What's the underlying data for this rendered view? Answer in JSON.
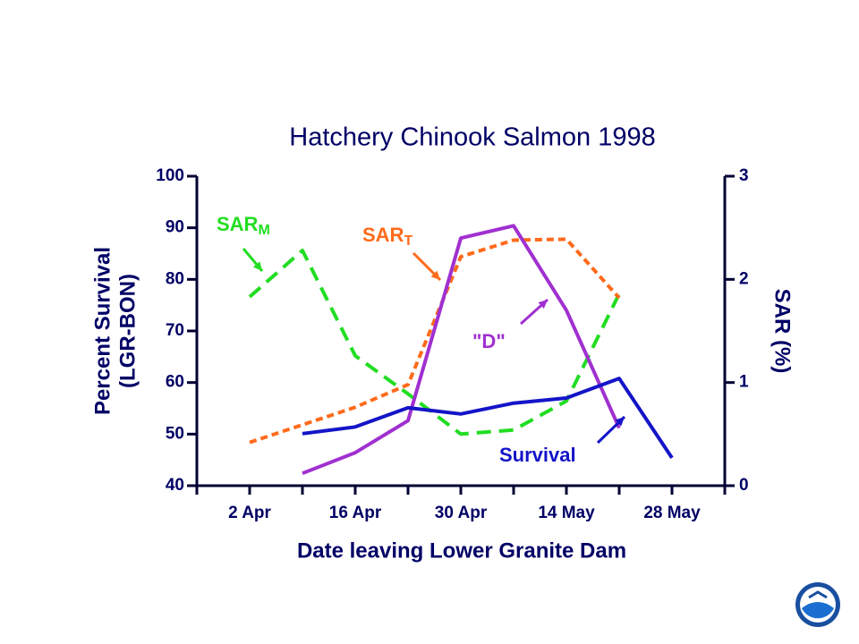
{
  "chart_data": {
    "type": "line",
    "title": "Hatchery Chinook Salmon 1998",
    "xlabel": "Date leaving Lower Granite  Dam",
    "ylabel": [
      "Percent Survival",
      "(LGR-BON)"
    ],
    "y2label": "SAR (%)",
    "xlim": [
      "26 Mar",
      "4 Jun"
    ],
    "xticks": [
      "2 Apr",
      "16 Apr",
      "30 Apr",
      "14 May",
      "28 May"
    ],
    "xminor_ticks": [
      "26 Mar",
      "9 Apr",
      "23 Apr",
      "7 May",
      "21 May",
      "4 Jun"
    ],
    "ylim": [
      40,
      100
    ],
    "yticks": [
      40,
      50,
      60,
      70,
      80,
      90,
      100
    ],
    "y2lim": [
      0,
      3
    ],
    "y2ticks": [
      0,
      1,
      2,
      3
    ],
    "series": [
      {
        "name": "SAR",
        "subscript": "M",
        "color": "#22dd22",
        "axis": "y2",
        "dashed": true,
        "x": [
          "2 Apr",
          "9 Apr",
          "16 Apr",
          "23 Apr",
          "30 Apr",
          "7 May",
          "14 May",
          "21 May"
        ],
        "values": [
          1.83,
          2.28,
          1.26,
          0.89,
          0.5,
          0.54,
          0.82,
          1.86
        ]
      },
      {
        "name": "SAR",
        "subscript": "T",
        "color": "#ff6a1a",
        "axis": "y2",
        "dashed": true,
        "x": [
          "2 Apr",
          "16 Apr",
          "23 Apr",
          "30 Apr",
          "7 May",
          "14 May",
          "21 May"
        ],
        "values": [
          0.42,
          0.76,
          0.98,
          2.22,
          2.38,
          2.39,
          1.82
        ]
      },
      {
        "name": "\"D\"",
        "color": "#a030d0",
        "axis": "y2",
        "dashed": false,
        "x": [
          "9 Apr",
          "16 Apr",
          "23 Apr",
          "30 Apr",
          "7 May",
          "14 May",
          "21 May"
        ],
        "values": [
          0.12,
          0.32,
          0.63,
          2.4,
          2.52,
          1.7,
          0.56
        ]
      },
      {
        "name": "Survival",
        "color": "#1414c8",
        "axis": "y",
        "dashed": false,
        "x": [
          "9 Apr",
          "16 Apr",
          "23 Apr",
          "30 Apr",
          "7 May",
          "14 May",
          "21 May",
          "28 May"
        ],
        "values": [
          50.1,
          51.4,
          55.1,
          53.9,
          56.0,
          57.0,
          60.8,
          45.4
        ]
      }
    ]
  }
}
